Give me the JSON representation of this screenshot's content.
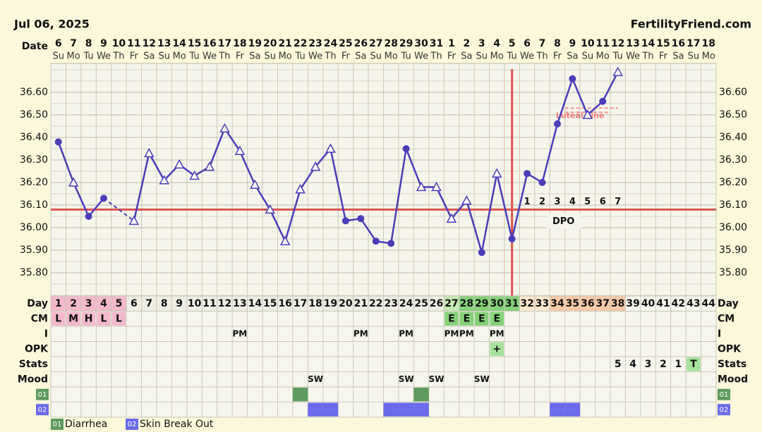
{
  "header": {
    "date": "Jul 06, 2025",
    "site": "FertilityFriend.com"
  },
  "chart_data": {
    "type": "line",
    "x_label": "Date",
    "dates": [
      6,
      7,
      8,
      9,
      10,
      11,
      12,
      13,
      14,
      15,
      16,
      17,
      18,
      19,
      20,
      21,
      22,
      23,
      24,
      25,
      26,
      27,
      28,
      29,
      30,
      31,
      1,
      2,
      3,
      4,
      5,
      6,
      7,
      8,
      9,
      10,
      11,
      12,
      13,
      14,
      15,
      16,
      17,
      18
    ],
    "weekdays": [
      "Su",
      "Mo",
      "Tu",
      "We",
      "Th",
      "Fr",
      "Sa",
      "Su",
      "Mo",
      "Tu",
      "We",
      "Th",
      "Fr",
      "Sa",
      "Su",
      "Mo",
      "Tu",
      "We",
      "Th",
      "Fr",
      "Sa",
      "Su",
      "Mo",
      "Tu",
      "We",
      "Th",
      "Fr",
      "Sa",
      "Su",
      "Mo",
      "Tu",
      "We",
      "Th",
      "Fr",
      "Sa",
      "Su",
      "Mo",
      "Tu",
      "We",
      "Th",
      "Fr",
      "Sa",
      "Su",
      "Mo"
    ],
    "values": [
      36.38,
      36.2,
      36.05,
      36.13,
      null,
      36.03,
      36.33,
      36.21,
      36.28,
      36.23,
      36.27,
      36.44,
      36.34,
      36.19,
      36.08,
      35.94,
      36.17,
      36.27,
      36.35,
      36.03,
      36.04,
      35.94,
      35.93,
      36.35,
      36.18,
      36.18,
      36.04,
      36.12,
      35.89,
      36.24,
      35.95,
      36.24,
      36.2,
      36.46,
      36.66,
      36.5,
      36.56,
      36.69,
      null,
      null,
      null,
      null,
      null,
      null
    ],
    "markers": [
      "c",
      "t",
      "c",
      "c",
      null,
      "t",
      "t",
      "t",
      "t",
      "t",
      "t",
      "t",
      "t",
      "t",
      "t",
      "t",
      "t",
      "t",
      "t",
      "c",
      "c",
      "c",
      "c",
      "c",
      "t",
      "t",
      "t",
      "t",
      "c",
      "t",
      "c",
      "c",
      "c",
      "c",
      "c",
      "t",
      "c",
      "t",
      null,
      null,
      null,
      null,
      null,
      null
    ],
    "color": "#4b3db8",
    "coverline": 36.08,
    "coverline_color": "#d9554f",
    "ovulation_day": 31,
    "luteal_line": {
      "label": "Luteal Line",
      "value": 36.53,
      "from_day": 35,
      "to_day": 38,
      "color": "#ee7b7b"
    },
    "dpo": {
      "label": "DPO",
      "values": [
        1,
        2,
        3,
        4,
        5,
        6,
        7
      ],
      "start_day": 32
    },
    "ylim": [
      35.7,
      36.7
    ],
    "yticks": [
      {
        "value": 35.8,
        "label": "35.80"
      },
      {
        "value": 35.9,
        "label": "35.90"
      },
      {
        "value": 36.0,
        "label": "36.00"
      },
      {
        "value": 36.1,
        "label": "36.10"
      },
      {
        "value": 36.2,
        "label": "36.20"
      },
      {
        "value": 36.3,
        "label": "36.30"
      },
      {
        "value": 36.4,
        "label": "36.40"
      },
      {
        "value": 36.5,
        "label": "36.50"
      },
      {
        "value": 36.6,
        "label": "36.60"
      }
    ],
    "grid": true
  },
  "table": {
    "row_labels": [
      "Day",
      "CM",
      "I",
      "OPK",
      "Stats",
      "Mood",
      "01",
      "02"
    ],
    "days": [
      1,
      2,
      3,
      4,
      5,
      6,
      7,
      8,
      9,
      10,
      11,
      12,
      13,
      14,
      15,
      16,
      17,
      18,
      19,
      20,
      21,
      22,
      23,
      24,
      25,
      26,
      27,
      28,
      29,
      30,
      31,
      32,
      33,
      34,
      35,
      36,
      37,
      38,
      39,
      40,
      41,
      42,
      43,
      44
    ],
    "day_phases": [
      {
        "from": 1,
        "to": 5,
        "color": "#f3b9cb"
      },
      {
        "from": 6,
        "to": 26,
        "color": "#ededE4"
      },
      {
        "from": 27,
        "to": 27,
        "color": "#c5e9b5"
      },
      {
        "from": 28,
        "to": 31,
        "color": "#84d278"
      },
      {
        "from": 32,
        "to": 33,
        "color": "#fde6cf"
      },
      {
        "from": 34,
        "to": 38,
        "color": "#f8caa8"
      },
      {
        "from": 39,
        "to": 44,
        "color": "#f6f6ee"
      }
    ],
    "cm": [
      {
        "day": 1,
        "text": "L",
        "color": "#f3b9cb"
      },
      {
        "day": 2,
        "text": "M",
        "color": "#f3b9cb"
      },
      {
        "day": 3,
        "text": "H",
        "color": "#f3b9cb"
      },
      {
        "day": 4,
        "text": "L",
        "color": "#f3b9cb"
      },
      {
        "day": 5,
        "text": "L",
        "color": "#f3b9cb"
      },
      {
        "day": 27,
        "text": "E",
        "color": "#84d278"
      },
      {
        "day": 28,
        "text": "E",
        "color": "#84d278"
      },
      {
        "day": 29,
        "text": "E",
        "color": "#84d278"
      },
      {
        "day": 30,
        "text": "E",
        "color": "#84d278"
      }
    ],
    "i": [
      {
        "day": 13,
        "text": "PM"
      },
      {
        "day": 21,
        "text": "PM"
      },
      {
        "day": 24,
        "text": "PM"
      },
      {
        "day": 27,
        "text": "PM"
      },
      {
        "day": 28,
        "text": "PM"
      },
      {
        "day": 30,
        "text": "PM"
      }
    ],
    "opk": [
      {
        "day": 30,
        "text": "+",
        "color": "#a6e29a"
      }
    ],
    "stats": [
      {
        "day": 38,
        "text": "5"
      },
      {
        "day": 39,
        "text": "4"
      },
      {
        "day": 40,
        "text": "3"
      },
      {
        "day": 41,
        "text": "2"
      },
      {
        "day": 42,
        "text": "1"
      },
      {
        "day": 43,
        "text": "T",
        "color": "#a6e29a"
      }
    ],
    "mood": [
      {
        "day": 18,
        "text": "SW"
      },
      {
        "day": 24,
        "text": "SW"
      },
      {
        "day": 26,
        "text": "SW"
      },
      {
        "day": 29,
        "text": "SW"
      }
    ],
    "symptom_01": [
      17,
      25
    ],
    "symptom_02": [
      18,
      19,
      23,
      24,
      25,
      34,
      35
    ]
  },
  "legend": [
    {
      "code": "01",
      "label": "Diarrhea",
      "color": "#5e9b5e"
    },
    {
      "code": "02",
      "label": "Skin Break Out",
      "color": "#6b6bec"
    }
  ]
}
